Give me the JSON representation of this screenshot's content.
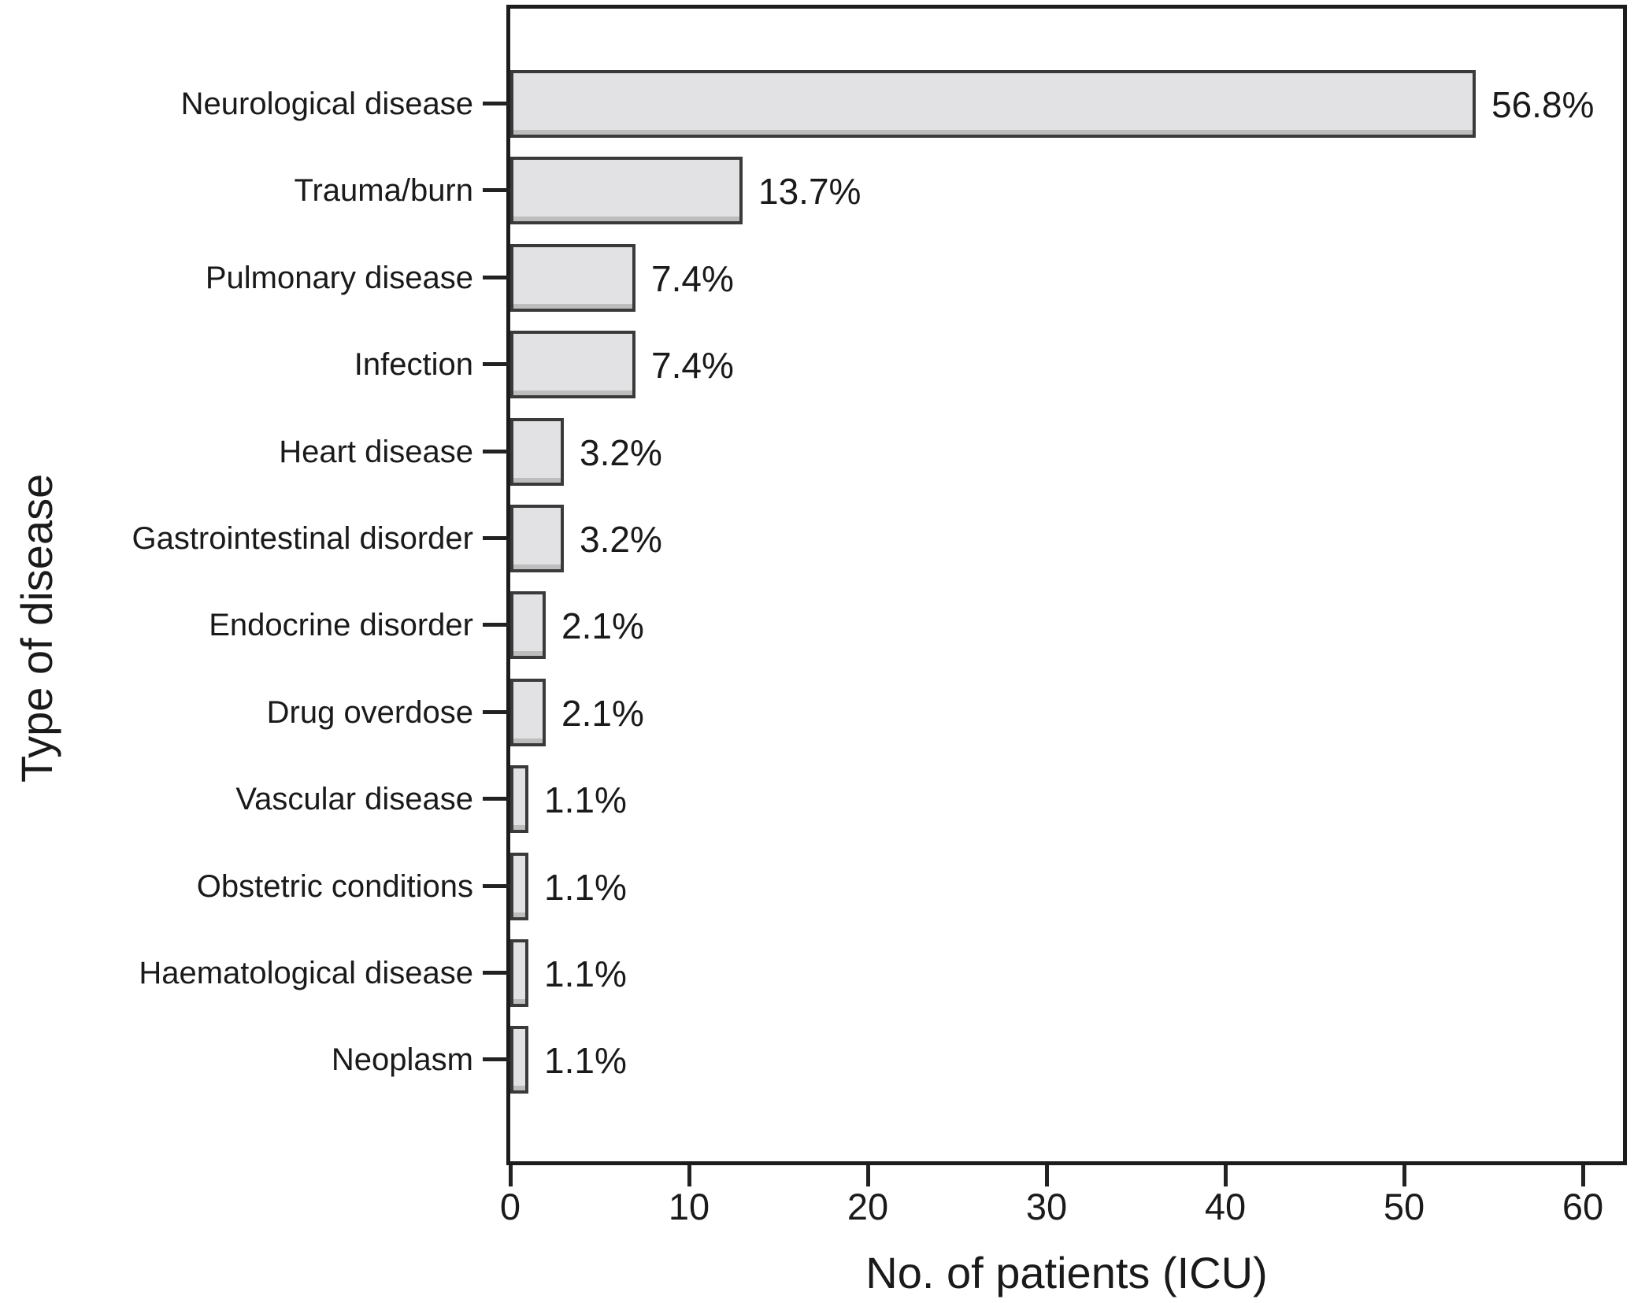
{
  "chart_data": {
    "type": "bar",
    "orientation": "horizontal",
    "title": "",
    "xlabel": "No. of patients (ICU)",
    "ylabel": "Type of disease",
    "categories": [
      "Neurological disease",
      "Trauma/burn",
      "Pulmonary disease",
      "Infection",
      "Heart disease",
      "Gastrointestinal disorder",
      "Endocrine disorder",
      "Drug overdose",
      "Vascular disease",
      "Obstetric conditions",
      "Haematological disease",
      "Neoplasm"
    ],
    "values": [
      54,
      13,
      7,
      7,
      3,
      3,
      2,
      2,
      1,
      1,
      1,
      1
    ],
    "value_labels": [
      "56.8%",
      "13.7%",
      "7.4%",
      "7.4%",
      "3.2%",
      "3.2%",
      "2.1%",
      "2.1%",
      "1.1%",
      "1.1%",
      "1.1%",
      "1.1%"
    ],
    "xticks": [
      0,
      10,
      20,
      30,
      40,
      50,
      60
    ],
    "xlim": [
      0,
      62.5
    ],
    "grid": false,
    "legend": null,
    "colors": {
      "bar_fill": "#e2e2e4",
      "bar_border": "#3a3a3a",
      "axis": "#1c1c1c",
      "text": "#1a1a1a",
      "background": "#ffffff"
    }
  }
}
